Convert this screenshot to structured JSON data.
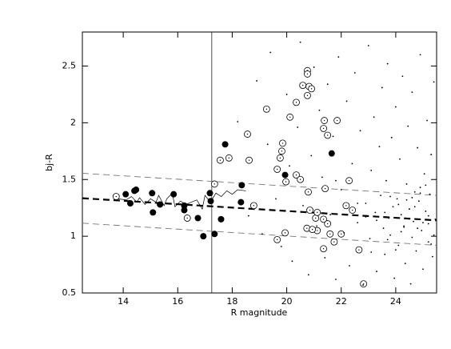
{
  "chart_data": {
    "type": "scatter",
    "x_label": "R magnitude",
    "y_label": "bj-R",
    "xlim": [
      12.5,
      25.5
    ],
    "ylim": [
      0.5,
      2.8
    ],
    "xticks": [
      14,
      16,
      18,
      20,
      22,
      24
    ],
    "yticks": [
      0.5,
      1,
      1.5,
      2,
      2.5
    ],
    "vline": 17.25,
    "lines": [
      {
        "style": "thick-dashed",
        "x": [
          12.5,
          25.5
        ],
        "y": [
          1.335,
          1.14
        ]
      },
      {
        "style": "thin-dashed",
        "x": [
          12.5,
          25.5
        ],
        "y": [
          1.555,
          1.36
        ]
      },
      {
        "style": "thin-dashed",
        "x": [
          12.5,
          25.5
        ],
        "y": [
          1.115,
          0.92
        ]
      },
      {
        "style": "solid",
        "x": [
          13.8,
          14.1,
          14.3,
          14.5,
          14.6,
          14.8,
          15.0,
          15.2,
          15.3,
          15.5,
          15.6,
          15.8,
          15.9,
          16.1,
          16.3,
          16.5,
          16.7,
          16.9,
          17.0,
          17.2,
          17.4,
          17.6,
          17.8,
          18.0,
          18.2,
          18.5
        ],
        "y": [
          1.33,
          1.32,
          1.35,
          1.3,
          1.34,
          1.28,
          1.33,
          1.3,
          1.36,
          1.27,
          1.33,
          1.38,
          1.26,
          1.31,
          1.28,
          1.3,
          1.32,
          1.24,
          1.36,
          1.3,
          1.38,
          1.35,
          1.4,
          1.37,
          1.41,
          1.4
        ]
      }
    ],
    "series": [
      {
        "name": "filled",
        "color": "#000000",
        "x": [
          14.09,
          14.47,
          14.41,
          14.26,
          15.06,
          15.09,
          15.35,
          15.85,
          16.24,
          16.24,
          16.74,
          16.94,
          17.18,
          17.21,
          17.35,
          17.59,
          17.74,
          18.35,
          18.32,
          19.94,
          21.65
        ],
        "y": [
          1.37,
          1.41,
          1.4,
          1.29,
          1.38,
          1.21,
          1.28,
          1.37,
          1.27,
          1.23,
          1.16,
          1.0,
          1.38,
          1.31,
          1.02,
          1.15,
          1.81,
          1.45,
          1.3,
          1.54,
          1.73
        ]
      },
      {
        "name": "open",
        "color": "#000000",
        "x": [
          13.74,
          16.35,
          17.35,
          17.56,
          17.88,
          18.56,
          18.62,
          18.79,
          19.26,
          19.65,
          19.76,
          19.82,
          19.85,
          20.12,
          20.35,
          20.59,
          20.76,
          20.76,
          20.82,
          20.76,
          20.91,
          20.35,
          19.97,
          20.5,
          20.79,
          20.85,
          21.06,
          19.94,
          19.65,
          20.74,
          21.35,
          21.5,
          21.38,
          21.85,
          21.41,
          21.35,
          21.5,
          21.59,
          21.35,
          22.0,
          22.18,
          22.41,
          22.29,
          22.65,
          22.82,
          21.12,
          20.94,
          21.74,
          21.12
        ],
        "y": [
          1.35,
          1.16,
          1.46,
          1.67,
          1.69,
          1.9,
          1.67,
          1.27,
          2.12,
          1.59,
          1.69,
          1.75,
          1.82,
          2.05,
          2.18,
          2.33,
          2.46,
          2.43,
          2.32,
          2.24,
          2.3,
          1.54,
          1.48,
          1.5,
          1.39,
          1.23,
          1.16,
          1.03,
          0.97,
          1.07,
          1.95,
          1.89,
          2.02,
          2.02,
          1.42,
          1.15,
          1.11,
          1.02,
          0.89,
          1.02,
          1.27,
          1.23,
          1.49,
          0.88,
          0.58,
          1.05,
          1.06,
          0.95,
          1.21
        ]
      },
      {
        "name": "dots",
        "color": "#000000",
        "x": [
          18.2,
          18.6,
          18.9,
          19.1,
          19.3,
          19.4,
          19.6,
          19.8,
          20.0,
          20.1,
          20.2,
          20.4,
          20.5,
          20.6,
          20.8,
          20.9,
          21.0,
          21.1,
          21.2,
          21.3,
          21.4,
          21.5,
          21.6,
          21.7,
          21.8,
          21.9,
          22.0,
          22.1,
          22.2,
          22.3,
          22.4,
          22.5,
          22.6,
          22.7,
          22.8,
          22.9,
          23.0,
          23.05,
          23.1,
          23.2,
          23.25,
          23.3,
          23.4,
          23.45,
          23.5,
          23.55,
          23.6,
          23.65,
          23.7,
          23.75,
          23.8,
          23.85,
          23.9,
          23.95,
          24.0,
          24.05,
          24.1,
          24.15,
          24.2,
          24.25,
          24.3,
          24.35,
          24.4,
          24.45,
          24.5,
          24.55,
          24.6,
          24.65,
          24.7,
          24.75,
          24.8,
          24.85,
          24.9,
          24.95,
          25.0,
          25.05,
          25.1,
          25.15,
          25.2,
          25.25,
          25.3,
          25.35,
          25.4,
          25.45,
          24.1,
          24.3,
          24.6,
          24.9,
          25.2,
          23.8,
          24.2,
          24.7,
          25.0,
          25.3,
          23.6,
          24.4,
          24.8,
          25.1,
          22.6,
          23.3,
          24.0,
          24.5,
          25.4,
          22.9,
          23.7,
          24.9,
          25.2,
          21.8,
          23.1,
          24.6
        ],
        "y": [
          2.01,
          1.18,
          2.37,
          1.02,
          1.81,
          2.62,
          1.33,
          0.91,
          2.25,
          1.62,
          0.78,
          1.96,
          2.71,
          1.27,
          0.66,
          1.71,
          2.49,
          1.09,
          2.11,
          1.52,
          0.81,
          2.34,
          1.19,
          1.88,
          0.62,
          2.58,
          1.41,
          1.03,
          2.19,
          0.74,
          1.64,
          2.44,
          1.12,
          1.93,
          0.57,
          1.29,
          2.68,
          0.98,
          1.58,
          2.05,
          1.21,
          0.69,
          1.79,
          1.36,
          2.31,
          1.07,
          0.84,
          1.49,
          2.52,
          1.16,
          1.01,
          1.87,
          1.26,
          0.63,
          2.14,
          1.33,
          0.92,
          1.68,
          1.19,
          2.41,
          1.08,
          0.76,
          1.46,
          1.97,
          1.24,
          0.58,
          2.27,
          1.13,
          1.39,
          0.87,
          1.78,
          1.31,
          2.6,
          1.05,
          0.71,
          1.55,
          1.22,
          2.02,
          0.95,
          1.37,
          1.72,
          0.82,
          2.36,
          1.15,
          1.28,
          1.09,
          0.99,
          1.43,
          1.18,
          1.35,
          1.04,
          1.26,
          1.12,
          0.93,
          1.21,
          1.32,
          1.07,
          1.45,
          1.29,
          1.14,
          0.88,
          1.24,
          1.01,
          1.17,
          0.97,
          1.38,
          1.11,
          1.49,
          0.86,
          1.34
        ]
      }
    ]
  }
}
